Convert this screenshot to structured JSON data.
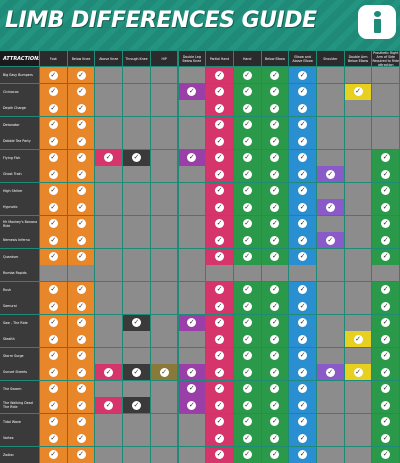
{
  "title": "LIMB DIFFERENCES GUIDE",
  "logo_icon": "info-icon",
  "headers": [
    "ATTRACTIONS",
    "Foot",
    "Below Knee",
    "Above Knee",
    "Through Knee",
    "HIP",
    "Double Leg Below Knee",
    "Partial Hand",
    "Hand",
    "Below Elbow",
    "Elbow and Above Elbow",
    "Shoulder",
    "Double Arm Below Elbow",
    "Prosthetic Right Arm of Side Required to Ride attraction"
  ],
  "column_colors": [
    "#e8862a",
    "#e8862a",
    "#d6356b",
    "#3a3a3a",
    "#8a7a3a",
    "#9b3fa8",
    "#d6356b",
    "#2a9a4a",
    "#2a9a4a",
    "#2a8fd0",
    "#8a5ac8",
    "#e8d020",
    "#2a9a4a"
  ],
  "empty_color": "#8c8c8c",
  "rows": [
    {
      "name": "Big Easy Bumpers",
      "cells": [
        1,
        1,
        0,
        0,
        0,
        0,
        1,
        1,
        1,
        1,
        0,
        0,
        0
      ]
    },
    {
      "name": "Cicinacos",
      "cells": [
        1,
        1,
        0,
        0,
        0,
        1,
        1,
        1,
        1,
        1,
        0,
        1,
        0
      ]
    },
    {
      "name": "Depth Charge",
      "cells": [
        1,
        1,
        0,
        0,
        0,
        0,
        1,
        1,
        1,
        1,
        0,
        0,
        0
      ]
    },
    {
      "name": "Detonator",
      "cells": [
        1,
        1,
        0,
        0,
        0,
        0,
        1,
        1,
        1,
        1,
        0,
        0,
        0
      ]
    },
    {
      "name": "Dobble Tea Party",
      "cells": [
        1,
        1,
        0,
        0,
        0,
        0,
        1,
        1,
        1,
        1,
        0,
        0,
        0
      ]
    },
    {
      "name": "Flying Fish",
      "cells": [
        1,
        1,
        1,
        1,
        0,
        1,
        1,
        1,
        1,
        1,
        0,
        0,
        1
      ]
    },
    {
      "name": "Ghost Train",
      "cells": [
        1,
        1,
        0,
        0,
        0,
        0,
        1,
        1,
        1,
        1,
        1,
        0,
        1
      ]
    },
    {
      "name": "High Striker",
      "cells": [
        1,
        1,
        0,
        0,
        0,
        0,
        1,
        1,
        1,
        1,
        0,
        0,
        1
      ]
    },
    {
      "name": "Hypnotic",
      "cells": [
        1,
        1,
        0,
        0,
        0,
        0,
        1,
        1,
        1,
        1,
        1,
        0,
        1
      ]
    },
    {
      "name": "Mr Monkey's Banana Ride",
      "cells": [
        1,
        1,
        0,
        0,
        0,
        0,
        1,
        1,
        1,
        1,
        0,
        0,
        1
      ]
    },
    {
      "name": "Nemesis Inferno",
      "cells": [
        1,
        1,
        0,
        0,
        0,
        0,
        1,
        1,
        1,
        1,
        1,
        0,
        1
      ]
    },
    {
      "name": "Quantum",
      "cells": [
        1,
        1,
        0,
        0,
        0,
        0,
        1,
        1,
        1,
        1,
        0,
        0,
        1
      ]
    },
    {
      "name": "Rumba Rapids",
      "cells": [
        0,
        0,
        0,
        0,
        0,
        0,
        0,
        0,
        0,
        0,
        0,
        0,
        0
      ]
    },
    {
      "name": "Rush",
      "cells": [
        1,
        1,
        0,
        0,
        0,
        0,
        1,
        1,
        1,
        1,
        0,
        0,
        1
      ]
    },
    {
      "name": "Samurai",
      "cells": [
        1,
        1,
        0,
        0,
        0,
        0,
        1,
        1,
        1,
        1,
        0,
        0,
        1
      ]
    },
    {
      "name": "Saw - The Ride",
      "cells": [
        1,
        1,
        0,
        1,
        0,
        1,
        1,
        1,
        1,
        1,
        0,
        0,
        1
      ]
    },
    {
      "name": "Stealth",
      "cells": [
        1,
        1,
        0,
        0,
        0,
        0,
        1,
        1,
        1,
        1,
        0,
        1,
        1
      ]
    },
    {
      "name": "Storm Surge",
      "cells": [
        1,
        1,
        0,
        0,
        0,
        0,
        1,
        1,
        1,
        1,
        0,
        0,
        1
      ]
    },
    {
      "name": "Sunset Streets",
      "cells": [
        1,
        1,
        1,
        1,
        1,
        1,
        1,
        1,
        1,
        1,
        1,
        1,
        1
      ]
    },
    {
      "name": "The Swarm",
      "cells": [
        1,
        1,
        0,
        0,
        0,
        1,
        1,
        1,
        1,
        1,
        0,
        0,
        1
      ]
    },
    {
      "name": "The Walking Dead The Ride",
      "cells": [
        1,
        1,
        1,
        1,
        0,
        1,
        1,
        1,
        1,
        1,
        0,
        0,
        1
      ]
    },
    {
      "name": "Tidal Wave",
      "cells": [
        1,
        1,
        0,
        0,
        0,
        0,
        1,
        1,
        1,
        1,
        0,
        0,
        1
      ]
    },
    {
      "name": "Vortex",
      "cells": [
        1,
        1,
        0,
        0,
        0,
        0,
        1,
        1,
        1,
        1,
        0,
        0,
        1
      ]
    },
    {
      "name": "Zodiac",
      "cells": [
        1,
        1,
        0,
        0,
        0,
        0,
        1,
        1,
        1,
        1,
        0,
        0,
        1
      ]
    }
  ]
}
